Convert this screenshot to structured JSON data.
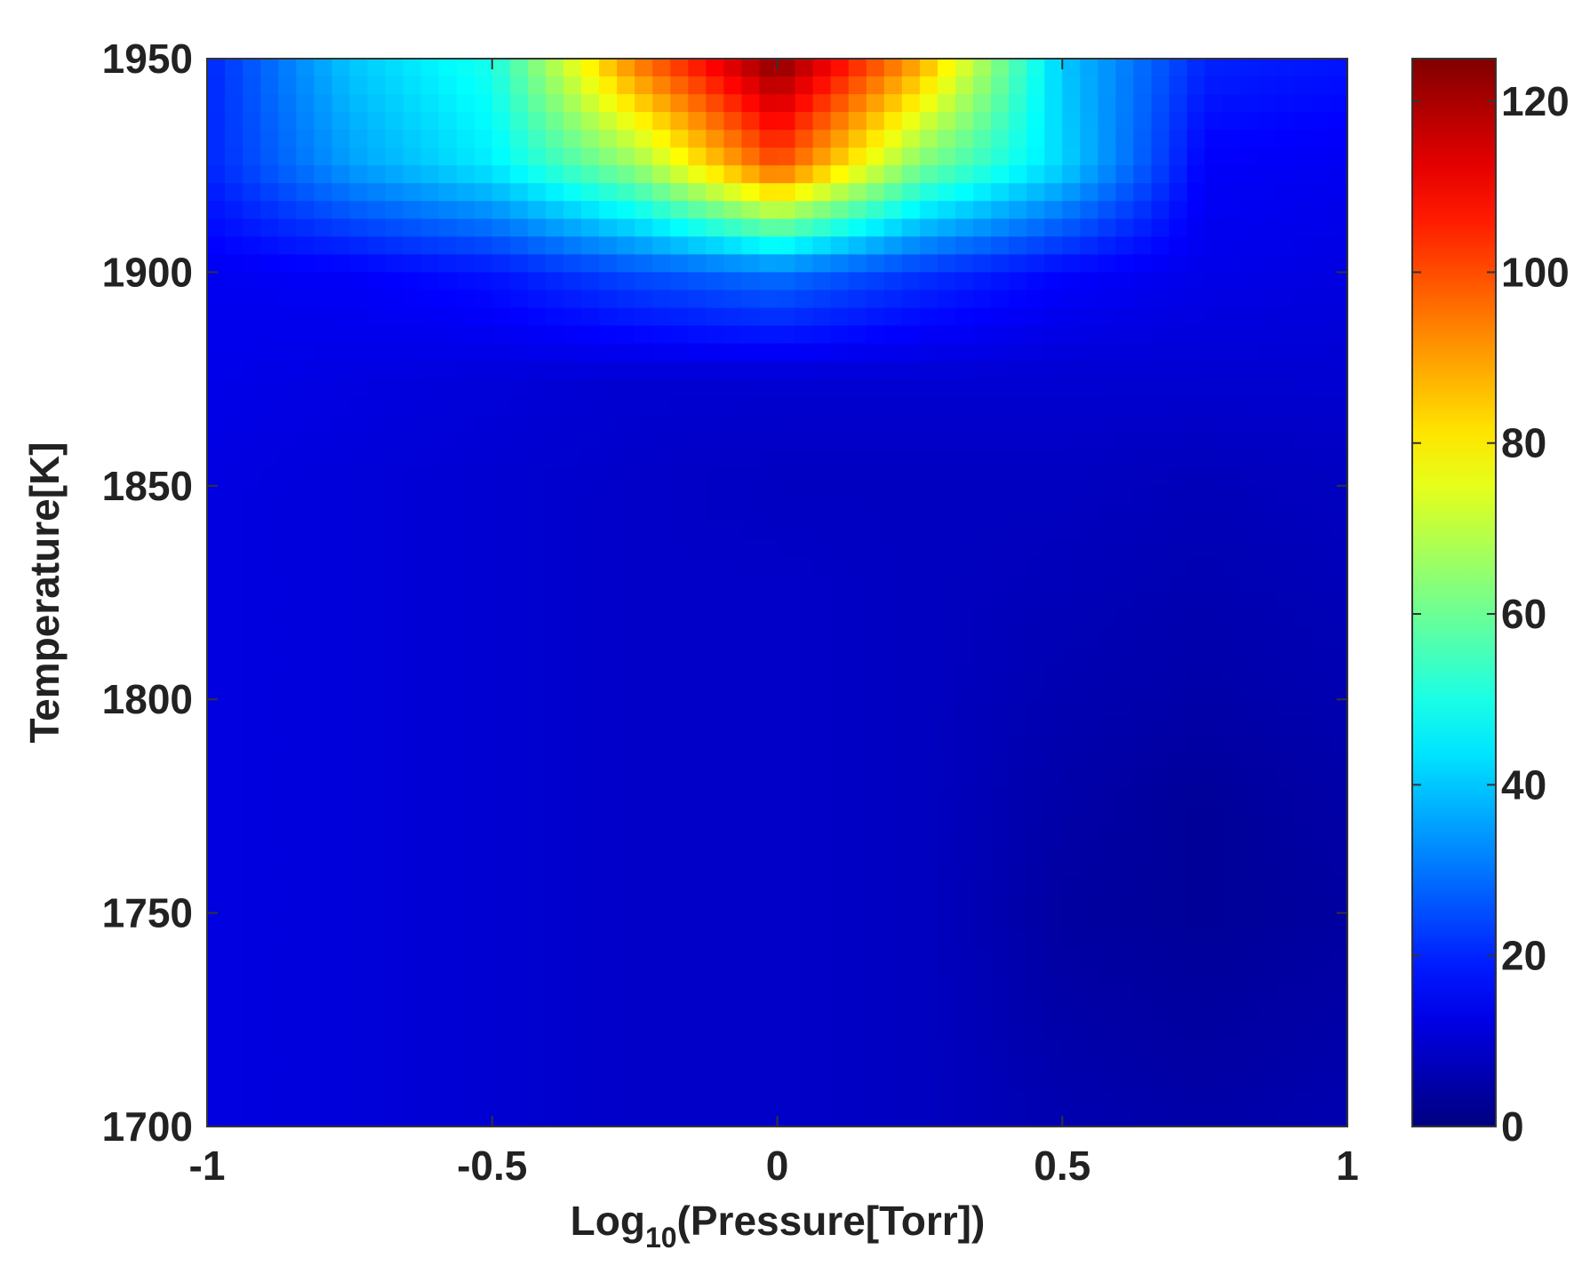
{
  "chart_data": {
    "type": "heatmap",
    "title": "",
    "xlabel": {
      "prefix": "Log",
      "subscript": "10",
      "suffix": "(Pressure[Torr])"
    },
    "ylabel": "Temperature[K]",
    "xlim": [
      -1,
      1
    ],
    "ylim": [
      1700,
      1950
    ],
    "colorbar": {
      "range": [
        0,
        125
      ],
      "colormap": "jet",
      "ticks": [
        0,
        20,
        40,
        60,
        80,
        100,
        120
      ],
      "tick_labels": [
        "0",
        "20",
        "40",
        "60",
        "80",
        "100",
        "120"
      ]
    },
    "x_ticks": [
      -1,
      -0.5,
      0,
      0.5,
      1
    ],
    "x_tick_labels": [
      "-1",
      "-0.5",
      "0",
      "0.5",
      "1"
    ],
    "y_ticks": [
      1700,
      1750,
      1800,
      1850,
      1900,
      1950
    ],
    "y_tick_labels": [
      "1700",
      "1750",
      "1800",
      "1850",
      "1900",
      "1950"
    ],
    "grid": false,
    "legend": "colorbar right",
    "x": [
      -1,
      -0.75,
      -0.5,
      -0.25,
      0,
      0.25,
      0.5,
      0.75,
      1
    ],
    "y": [
      1700,
      1725,
      1750,
      1775,
      1800,
      1825,
      1850,
      1875,
      1900,
      1925,
      1950
    ],
    "z": [
      [
        12,
        11,
        10,
        9,
        9,
        8,
        6,
        5,
        6
      ],
      [
        12,
        11,
        10,
        9,
        9,
        8,
        5,
        4,
        5
      ],
      [
        12,
        11,
        10,
        9,
        9,
        8,
        4,
        3,
        4
      ],
      [
        12,
        11,
        10,
        9,
        9,
        8,
        5,
        3,
        5
      ],
      [
        12,
        11,
        10,
        9,
        9,
        8,
        6,
        5,
        6
      ],
      [
        12,
        11,
        10,
        9,
        9,
        8,
        7,
        6,
        7
      ],
      [
        12,
        11,
        10,
        9,
        8,
        8,
        8,
        7,
        8
      ],
      [
        13,
        12,
        11,
        10,
        10,
        10,
        10,
        10,
        10
      ],
      [
        14,
        15,
        18,
        25,
        30,
        22,
        16,
        13,
        12
      ],
      [
        20,
        35,
        45,
        65,
        100,
        62,
        42,
        15,
        14
      ],
      [
        20,
        40,
        50,
        95,
        125,
        90,
        40,
        20,
        18
      ]
    ]
  }
}
